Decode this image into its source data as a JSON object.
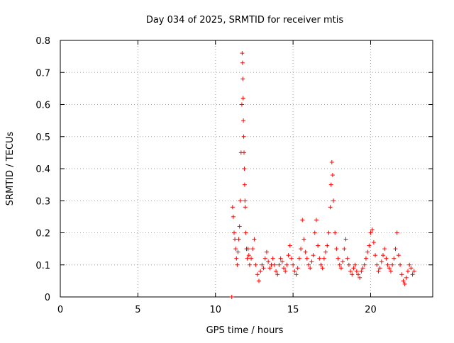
{
  "chart_data": {
    "type": "scatter",
    "title": "Day 034 of 2025, SRMTID for receiver mtis",
    "xlabel": "GPS time / hours",
    "ylabel": "SRMTID / TECUs",
    "xlim": [
      0,
      24
    ],
    "ylim": [
      0,
      0.8
    ],
    "x_ticks": [
      0,
      5,
      10,
      15,
      20
    ],
    "x_tick_labels": [
      "0",
      "5",
      "10",
      "15",
      "20"
    ],
    "y_ticks": [
      0,
      0.1,
      0.2,
      0.3,
      0.4,
      0.5,
      0.6,
      0.7,
      0.8
    ],
    "y_tick_labels": [
      "0",
      "0.1",
      "0.2",
      "0.3",
      "0.4",
      "0.5",
      "0.6",
      "0.7",
      "0.8"
    ],
    "grid": true,
    "marker": "+",
    "series_color": "#ff0000",
    "series": [
      {
        "name": "SRMTID",
        "x": [
          11.05,
          11.1,
          11.15,
          11.2,
          11.25,
          11.3,
          11.35,
          11.4,
          11.45,
          11.5,
          11.55,
          11.6,
          11.65,
          11.7,
          11.72,
          11.74,
          11.76,
          11.78,
          11.8,
          11.82,
          11.84,
          11.86,
          11.88,
          11.9,
          11.92,
          11.95,
          12.0,
          12.05,
          12.1,
          12.15,
          12.2,
          12.3,
          12.4,
          12.5,
          12.6,
          12.7,
          12.8,
          12.9,
          13.0,
          13.1,
          13.2,
          13.3,
          13.4,
          13.5,
          13.6,
          13.7,
          13.8,
          13.9,
          14.0,
          14.1,
          14.2,
          14.3,
          14.4,
          14.5,
          14.6,
          14.7,
          14.8,
          14.9,
          15.0,
          15.1,
          15.2,
          15.3,
          15.4,
          15.5,
          15.6,
          15.7,
          15.8,
          15.9,
          16.0,
          16.1,
          16.2,
          16.3,
          16.4,
          16.5,
          16.6,
          16.7,
          16.8,
          16.9,
          17.0,
          17.1,
          17.2,
          17.3,
          17.4,
          17.45,
          17.5,
          17.55,
          17.6,
          17.7,
          17.8,
          17.9,
          18.0,
          18.1,
          18.2,
          18.3,
          18.4,
          18.5,
          18.6,
          18.7,
          18.8,
          18.9,
          19.0,
          19.1,
          19.2,
          19.3,
          19.4,
          19.5,
          19.6,
          19.7,
          19.8,
          19.9,
          20.0,
          20.1,
          20.2,
          20.3,
          20.4,
          20.5,
          20.6,
          20.7,
          20.8,
          20.9,
          21.0,
          21.1,
          21.2,
          21.3,
          21.4,
          21.5,
          21.6,
          21.7,
          21.8,
          21.9,
          22.0,
          22.1,
          22.2,
          22.3,
          22.4,
          22.5,
          22.6,
          22.7,
          22.8
        ],
        "y": [
          0.0,
          0.28,
          0.25,
          0.2,
          0.18,
          0.15,
          0.12,
          0.1,
          0.14,
          0.18,
          0.22,
          0.3,
          0.45,
          0.6,
          0.76,
          0.73,
          0.68,
          0.62,
          0.55,
          0.5,
          0.45,
          0.4,
          0.35,
          0.3,
          0.28,
          0.2,
          0.15,
          0.12,
          0.15,
          0.13,
          0.1,
          0.12,
          0.15,
          0.18,
          0.1,
          0.07,
          0.05,
          0.08,
          0.1,
          0.09,
          0.12,
          0.14,
          0.11,
          0.09,
          0.1,
          0.12,
          0.1,
          0.08,
          0.07,
          0.1,
          0.12,
          0.11,
          0.09,
          0.08,
          0.1,
          0.13,
          0.16,
          0.12,
          0.1,
          0.08,
          0.07,
          0.09,
          0.12,
          0.15,
          0.24,
          0.18,
          0.14,
          0.12,
          0.1,
          0.09,
          0.11,
          0.13,
          0.2,
          0.24,
          0.16,
          0.12,
          0.1,
          0.09,
          0.12,
          0.14,
          0.16,
          0.2,
          0.28,
          0.35,
          0.42,
          0.38,
          0.3,
          0.2,
          0.15,
          0.12,
          0.1,
          0.09,
          0.11,
          0.15,
          0.18,
          0.12,
          0.1,
          0.08,
          0.07,
          0.09,
          0.1,
          0.08,
          0.07,
          0.06,
          0.08,
          0.09,
          0.1,
          0.12,
          0.14,
          0.16,
          0.2,
          0.21,
          0.17,
          0.13,
          0.1,
          0.08,
          0.09,
          0.11,
          0.13,
          0.15,
          0.12,
          0.1,
          0.09,
          0.08,
          0.1,
          0.12,
          0.15,
          0.2,
          0.13,
          0.1,
          0.07,
          0.05,
          0.04,
          0.06,
          0.08,
          0.1,
          0.09,
          0.07,
          0.08
        ]
      }
    ]
  }
}
